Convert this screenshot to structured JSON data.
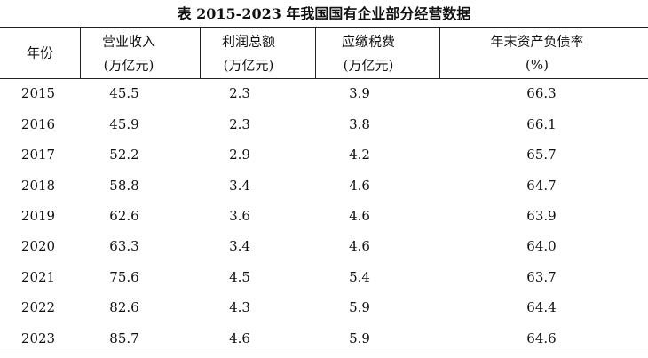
{
  "title": "表 2015-2023 年我国国有企业部分经营数据",
  "table": {
    "columns": [
      {
        "label": "年份"
      },
      {
        "label": "营业收入",
        "unit": "(万亿元)"
      },
      {
        "label": "利润总额",
        "unit": "(万亿元)"
      },
      {
        "label": "应缴税费",
        "unit": "(万亿元)"
      },
      {
        "label": "年末资产负债率",
        "unit": "(%)"
      }
    ],
    "rows": [
      [
        "2015",
        "45.5",
        "2.3",
        "3.9",
        "66.3"
      ],
      [
        "2016",
        "45.9",
        "2.3",
        "3.8",
        "66.1"
      ],
      [
        "2017",
        "52.2",
        "2.9",
        "4.2",
        "65.7"
      ],
      [
        "2018",
        "58.8",
        "3.4",
        "4.6",
        "64.7"
      ],
      [
        "2019",
        "62.6",
        "3.6",
        "4.6",
        "63.9"
      ],
      [
        "2020",
        "63.3",
        "3.4",
        "4.6",
        "64.0"
      ],
      [
        "2021",
        "75.6",
        "4.5",
        "5.4",
        "63.7"
      ],
      [
        "2022",
        "82.6",
        "4.3",
        "5.9",
        "64.4"
      ],
      [
        "2023",
        "85.7",
        "4.6",
        "5.9",
        "64.6"
      ]
    ]
  }
}
